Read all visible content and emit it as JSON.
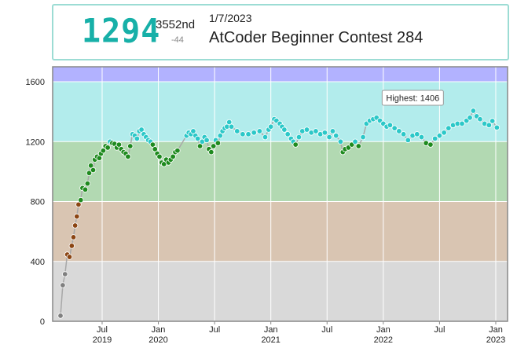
{
  "header": {
    "rating": "1294",
    "rank": "3552nd",
    "diff": "-44",
    "date": "1/7/2023",
    "contest": "AtCoder Beginner Contest 284"
  },
  "chart_data": {
    "type": "line",
    "annotation": "Highest: 1406",
    "xlim": [
      2019.06,
      2023.105
    ],
    "ylim": [
      0,
      1700
    ],
    "yticks": [
      0,
      400,
      800,
      1200,
      1600
    ],
    "xticks": [
      {
        "value": 2019.5,
        "label": "Jul"
      },
      {
        "value": 2020.0,
        "label": "Jan"
      },
      {
        "value": 2020.5,
        "label": "Jul"
      },
      {
        "value": 2021.0,
        "label": "Jan"
      },
      {
        "value": 2021.5,
        "label": "Jul"
      },
      {
        "value": 2022.0,
        "label": "Jan"
      },
      {
        "value": 2022.5,
        "label": "Jul"
      },
      {
        "value": 2023.0,
        "label": "Jan"
      }
    ],
    "xtick_years": [
      {
        "value": 2019.5,
        "label": "2019"
      },
      {
        "value": 2020.0,
        "label": "2020"
      },
      {
        "value": 2021.0,
        "label": "2021"
      },
      {
        "value": 2022.0,
        "label": "2022"
      },
      {
        "value": 2023.0,
        "label": "2023"
      }
    ],
    "grid": true,
    "line_color": "#a8a8a8",
    "bands": [
      {
        "from": 0,
        "to": 400,
        "color": "#d9d9d9",
        "point_color": "#808080"
      },
      {
        "from": 400,
        "to": 800,
        "color": "#d9c5b2",
        "point_color": "#8b4513"
      },
      {
        "from": 800,
        "to": 1200,
        "color": "#b2d9b2",
        "point_color": "#1e8a1e"
      },
      {
        "from": 1200,
        "to": 1600,
        "color": "#b2ecec",
        "point_color": "#2cc8c8"
      },
      {
        "from": 1600,
        "to": 1700,
        "color": "#b2b2ff",
        "point_color": "#4040ff"
      }
    ],
    "x": [
      2019.13,
      2019.15,
      2019.17,
      2019.19,
      2019.21,
      2019.23,
      2019.245,
      2019.26,
      2019.275,
      2019.29,
      2019.31,
      2019.325,
      2019.35,
      2019.37,
      2019.385,
      2019.4,
      2019.42,
      2019.435,
      2019.455,
      2019.475,
      2019.49,
      2019.51,
      2019.53,
      2019.55,
      2019.57,
      2019.59,
      2019.61,
      2019.63,
      2019.65,
      2019.67,
      2019.69,
      2019.71,
      2019.73,
      2019.75,
      2019.77,
      2019.79,
      2019.81,
      2019.83,
      2019.85,
      2019.87,
      2019.89,
      2019.91,
      2019.93,
      2019.95,
      2019.97,
      2019.99,
      2020.01,
      2020.03,
      2020.05,
      2020.07,
      2020.09,
      2020.11,
      2020.13,
      2020.15,
      2020.17,
      2020.25,
      2020.27,
      2020.29,
      2020.31,
      2020.33,
      2020.35,
      2020.37,
      2020.39,
      2020.41,
      2020.43,
      2020.45,
      2020.47,
      2020.49,
      2020.51,
      2020.53,
      2020.55,
      2020.57,
      2020.59,
      2020.61,
      2020.63,
      2020.65,
      2020.7,
      2020.75,
      2020.8,
      2020.85,
      2020.9,
      2020.95,
      2020.98,
      2021.0,
      2021.03,
      2021.05,
      2021.08,
      2021.1,
      2021.12,
      2021.15,
      2021.18,
      2021.2,
      2021.22,
      2021.25,
      2021.28,
      2021.32,
      2021.36,
      2021.4,
      2021.44,
      2021.48,
      2021.52,
      2021.55,
      2021.58,
      2021.62,
      2021.64,
      2021.66,
      2021.69,
      2021.72,
      2021.75,
      2021.78,
      2021.82,
      2021.85,
      2021.88,
      2021.91,
      2021.94,
      2021.97,
      2022.0,
      2022.03,
      2022.06,
      2022.1,
      2022.14,
      2022.18,
      2022.22,
      2022.26,
      2022.3,
      2022.34,
      2022.38,
      2022.42,
      2022.46,
      2022.5,
      2022.54,
      2022.58,
      2022.62,
      2022.66,
      2022.7,
      2022.74,
      2022.77,
      2022.8,
      2022.83,
      2022.86,
      2022.9,
      2022.94,
      2022.97,
      2023.01
    ],
    "values": [
      37,
      241,
      315,
      446,
      430,
      504,
      562,
      640,
      700,
      780,
      810,
      890,
      880,
      920,
      990,
      1040,
      1010,
      1080,
      1100,
      1090,
      1120,
      1140,
      1170,
      1160,
      1200,
      1190,
      1185,
      1160,
      1180,
      1150,
      1130,
      1120,
      1100,
      1170,
      1250,
      1240,
      1220,
      1270,
      1280,
      1250,
      1230,
      1210,
      1200,
      1180,
      1150,
      1120,
      1100,
      1060,
      1050,
      1080,
      1060,
      1080,
      1100,
      1130,
      1140,
      1240,
      1260,
      1250,
      1270,
      1240,
      1220,
      1170,
      1200,
      1230,
      1210,
      1150,
      1130,
      1170,
      1210,
      1190,
      1240,
      1270,
      1290,
      1300,
      1330,
      1300,
      1270,
      1250,
      1250,
      1260,
      1270,
      1230,
      1280,
      1300,
      1350,
      1340,
      1320,
      1300,
      1280,
      1250,
      1220,
      1200,
      1180,
      1230,
      1270,
      1280,
      1260,
      1270,
      1250,
      1260,
      1230,
      1270,
      1240,
      1200,
      1130,
      1150,
      1160,
      1180,
      1200,
      1170,
      1230,
      1320,
      1340,
      1350,
      1360,
      1340,
      1320,
      1300,
      1310,
      1290,
      1270,
      1250,
      1210,
      1240,
      1250,
      1230,
      1190,
      1180,
      1220,
      1240,
      1260,
      1290,
      1310,
      1320,
      1320,
      1340,
      1360,
      1406,
      1370,
      1350,
      1320,
      1310,
      1338,
      1294
    ]
  }
}
